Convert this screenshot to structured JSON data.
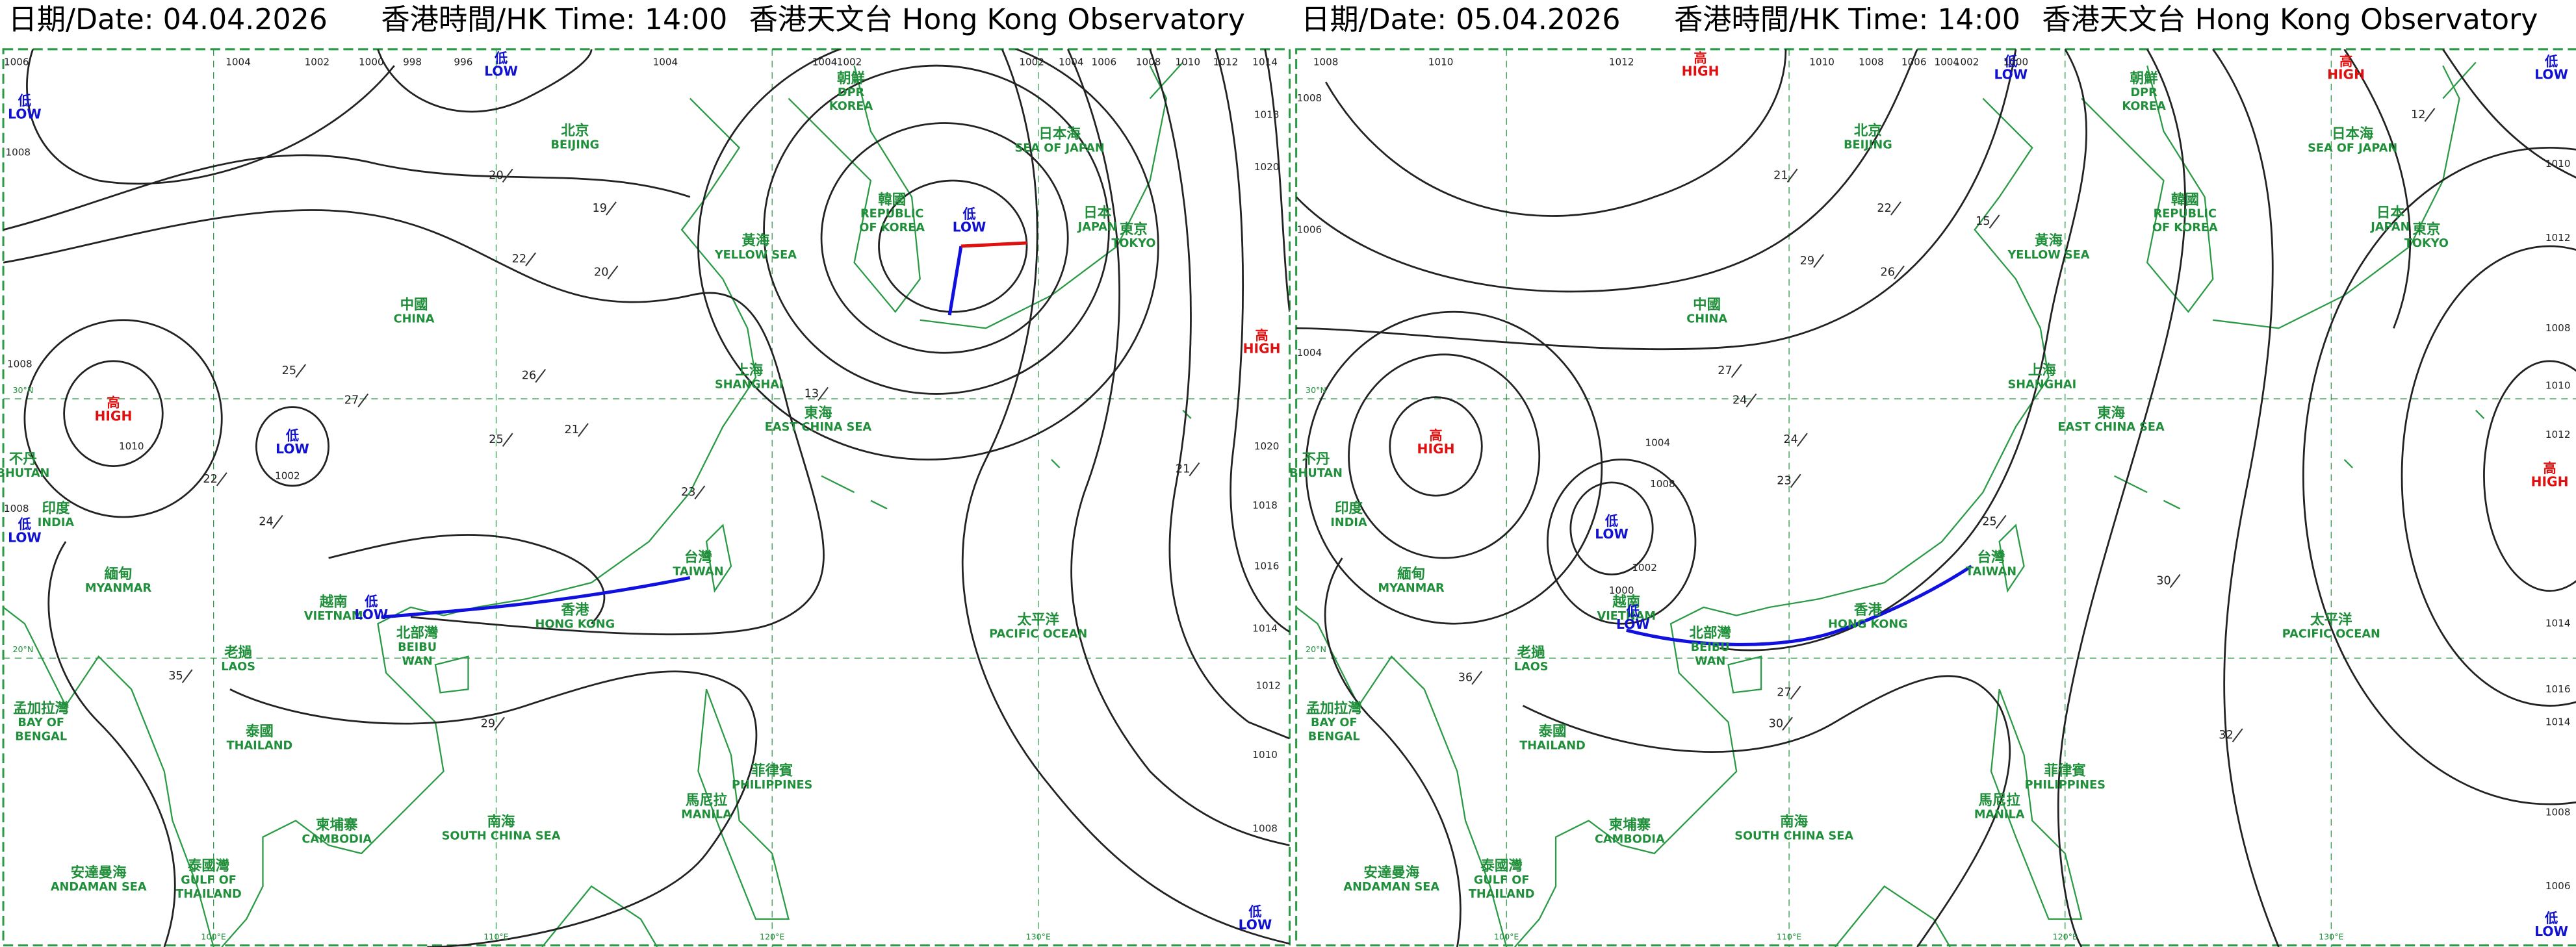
{
  "panels": [
    {
      "header": {
        "date": "日期/Date: 04.04.2026",
        "time": "香港時間/HK Time: 14:00",
        "source": "香港天文台 Hong Kong Observatory"
      },
      "centres": [
        {
          "zh": "低",
          "en": "LOW",
          "color": "#1010d0"
        },
        {
          "zh": "低",
          "en": "LOW",
          "color": "#1010d0"
        },
        {
          "zh": "高",
          "en": "HIGH",
          "color": "#e01010"
        },
        {
          "zh": "低",
          "en": "LOW",
          "color": "#1010d0"
        },
        {
          "zh": "低",
          "en": "LOW",
          "color": "#1010d0"
        },
        {
          "zh": "高",
          "en": "HIGH",
          "color": "#e01010"
        },
        {
          "zh": "低",
          "en": "LOW",
          "color": "#1010d0"
        },
        {
          "zh": "低",
          "en": "LOW",
          "color": "#1010d0"
        },
        {
          "zh": "低",
          "en": "LOW",
          "color": "#1010d0"
        }
      ],
      "isobar_labels": [
        "1006",
        "1004",
        "1002",
        "1000",
        "998",
        "996",
        "1004",
        "1004",
        "1002",
        "1002",
        "1004",
        "1006",
        "1008",
        "1010",
        "1012",
        "1014",
        "1018",
        "1020",
        "1008",
        "1008",
        "1010",
        "1002",
        "1008",
        "1020",
        "1018",
        "1016",
        "1014",
        "1012",
        "1010",
        "1008"
      ],
      "observations": [
        "25",
        "27",
        "22",
        "24",
        "25",
        "21",
        "22",
        "20",
        "19",
        "20",
        "29",
        "35",
        "21",
        "26",
        "13",
        "23"
      ]
    },
    {
      "header": {
        "date": "日期/Date: 05.04.2026",
        "time": "香港時間/HK Time: 14:00",
        "source": "香港天文台 Hong Kong Observatory"
      },
      "centres": [
        {
          "zh": "高",
          "en": "HIGH",
          "color": "#e01010"
        },
        {
          "zh": "低",
          "en": "LOW",
          "color": "#1010d0"
        },
        {
          "zh": "高",
          "en": "HIGH",
          "color": "#e01010"
        },
        {
          "zh": "低",
          "en": "LOW",
          "color": "#1010d0"
        },
        {
          "zh": "高",
          "en": "HIGH",
          "color": "#e01010"
        },
        {
          "zh": "低",
          "en": "LOW",
          "color": "#1010d0"
        },
        {
          "zh": "低",
          "en": "LOW",
          "color": "#1010d0"
        },
        {
          "zh": "高",
          "en": "HIGH",
          "color": "#e01010"
        },
        {
          "zh": "低",
          "en": "LOW",
          "color": "#1010d0"
        }
      ],
      "isobar_labels": [
        "1008",
        "1010",
        "1012",
        "1010",
        "1008",
        "1006",
        "1004",
        "1002",
        "1000",
        "1008",
        "1010",
        "1012",
        "1006",
        "1004",
        "1004",
        "1008",
        "1002",
        "1000",
        "1008",
        "1010",
        "1012",
        "1014",
        "1016",
        "1014",
        "1008",
        "1006"
      ],
      "observations": [
        "27",
        "24",
        "23",
        "21",
        "22",
        "29",
        "26",
        "30",
        "32",
        "36",
        "24",
        "25",
        "27",
        "30",
        "15",
        "12"
      ]
    }
  ],
  "places": [
    [
      "中國",
      "CHINA"
    ],
    [
      "韓國",
      "REPUBLIC",
      "OF KOREA"
    ],
    [
      "朝鮮",
      "DPR",
      "KOREA"
    ],
    [
      "日本",
      "JAPAN"
    ],
    [
      "越南",
      "VIETNAM"
    ],
    [
      "老撾",
      "LAOS"
    ],
    [
      "泰國",
      "THAILAND"
    ],
    [
      "柬埔寨",
      "CAMBODIA"
    ],
    [
      "緬甸",
      "MYANMAR"
    ],
    [
      "印度",
      "INDIA"
    ],
    [
      "不丹",
      "BHUTAN"
    ],
    [
      "孟加拉灣",
      "BAY OF",
      "BENGAL"
    ],
    [
      "菲律賓",
      "PHILIPPINES"
    ],
    [
      "太平洋",
      "PACIFIC OCEAN"
    ],
    [
      "黃海",
      "YELLOW SEA"
    ],
    [
      "東海",
      "EAST CHINA SEA"
    ],
    [
      "南海",
      "SOUTH CHINA SEA"
    ],
    [
      "日本海",
      "SEA OF JAPAN"
    ],
    [
      "安達曼海",
      "ANDAMAN SEA"
    ],
    [
      "泰國灣",
      "GULF OF",
      "THAILAND"
    ],
    [
      "北部灣",
      "BEIBU",
      "WAN"
    ],
    [
      "香港",
      "HONG KONG"
    ],
    [
      "台灣",
      "TAIWAN"
    ],
    [
      "北京",
      "BEIJING"
    ],
    [
      "上海",
      "SHANGHAI"
    ],
    [
      "東京",
      "TOKYO"
    ],
    [
      "馬尼拉",
      "MANILA"
    ]
  ],
  "grid_labels": [
    "100°E",
    "110°E",
    "120°E",
    "130°E",
    "30°N",
    "20°N"
  ]
}
